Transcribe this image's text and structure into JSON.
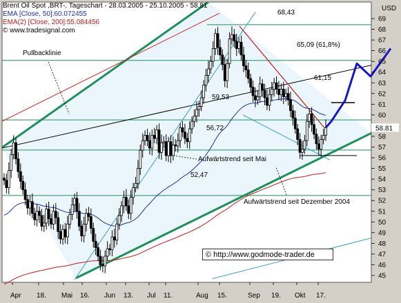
{
  "chart_data": {
    "type": "candlestick",
    "title": "Brent Oil Spot ,BRT-, Tageschart - 28.03.2005 - 25.10.2005 - 58.81",
    "y_axis_unit": "USD",
    "ylim": [
      44.5,
      69.8
    ],
    "y_ticks": [
      45,
      46,
      47,
      48,
      49,
      50,
      51,
      52,
      53,
      54,
      55,
      56,
      57,
      58,
      59,
      60,
      61,
      62,
      63,
      64,
      65,
      66,
      67,
      68,
      69
    ],
    "x_tick_labels": [
      "Apr",
      "18.",
      "Mai",
      "16.",
      "Jun",
      "13.",
      "Jul",
      "11.",
      "Aug",
      "15.",
      "Sep",
      "19.",
      "Okt",
      "17."
    ],
    "last_price_label": "58.81",
    "legend": [
      {
        "text": "Brent Oil Spot ,BRT-, Tageschart - 28.03.2005 - 25.10.2005 - 58.81",
        "color": "#000000"
      },
      {
        "text": "EMA [Close, 50]:60.072455",
        "color": "#1d2fa8"
      },
      {
        "text": "EMA(2) [Close, 200]:55.084456",
        "color": "#c11a1a"
      },
      {
        "text": "© www.tradesignal.com",
        "color": "#000000"
      }
    ],
    "horizontal_levels": [
      {
        "value": 68.43,
        "label": "68,43"
      },
      {
        "value": 65.09,
        "label": "65,09 (61,8%)"
      },
      {
        "value": 61.15,
        "label": "61,15"
      },
      {
        "value": 59.53,
        "label": "59,53"
      },
      {
        "value": 56.72,
        "label": "56,72"
      },
      {
        "value": 52.47,
        "label": "52,47"
      }
    ],
    "annotations": [
      "Pullbacklinie",
      "Aufwärtstrend seit Mai",
      "Aufwärtstrend seit Dezember 2004"
    ],
    "closes": [
      53.9,
      53.2,
      54.8,
      56.3,
      57.4,
      55.9,
      54.7,
      53.8,
      53.0,
      52.1,
      51.3,
      51.9,
      50.8,
      50.2,
      51.0,
      50.6,
      49.6,
      49.9,
      51.2,
      50.3,
      49.8,
      51.0,
      50.4,
      49.1,
      48.4,
      49.3,
      48.6,
      49.8,
      50.7,
      51.6,
      52.2,
      51.0,
      49.6,
      48.7,
      49.8,
      50.8,
      50.5,
      49.4,
      48.2,
      47.6,
      46.8,
      46.0,
      45.9,
      46.8,
      47.5,
      47.4,
      48.6,
      48.3,
      49.8,
      50.6,
      51.5,
      52.3,
      51.5,
      50.8,
      52.3,
      53.2,
      53.6,
      55.0,
      56.7,
      57.6,
      58.1,
      57.6,
      56.9,
      58.1,
      57.8,
      58.6,
      56.5,
      57.4,
      57.5,
      56.2,
      57.5,
      56.2,
      57.2,
      57.1,
      57.6,
      58.8,
      58.4,
      57.8,
      57.5,
      58.7,
      59.4,
      59.9,
      60.5,
      60.8,
      61.6,
      62.8,
      63.7,
      64.3,
      65.0,
      66.2,
      67.6,
      66.3,
      65.6,
      64.7,
      63.2,
      64.8,
      67.1,
      67.5,
      66.9,
      66.2,
      66.8,
      65.6,
      64.6,
      64.2,
      63.4,
      62.6,
      61.8,
      61.4,
      61.7,
      62.9,
      62.3,
      61.6,
      60.9,
      61.9,
      62.4,
      63.0,
      62.4,
      61.9,
      62.4,
      61.7,
      62.0,
      61.4,
      60.4,
      59.7,
      58.7,
      57.7,
      56.5,
      56.8,
      57.6,
      59.4,
      60.1,
      59.1,
      58.2,
      57.3,
      56.8,
      57.7,
      58.1,
      58.81
    ],
    "forecast_path": [
      [
        61.4,
        63.3
      ],
      [
        62.2,
        64.8
      ],
      [
        63.0,
        63.7
      ],
      [
        63.9,
        66.2
      ]
    ],
    "ema50_color": "#1d2fa8",
    "ema200_color": "#c11a1a",
    "trend_color": "#1d8f5a",
    "forecast_color": "#1414c8",
    "grid": false
  },
  "credit": "© http://www.godmode-trader.de"
}
